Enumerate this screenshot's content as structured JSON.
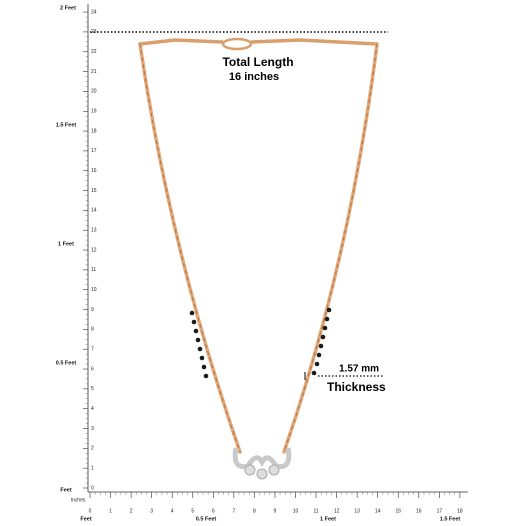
{
  "annotations": {
    "total_length": "Total  Length",
    "length_value": "16 inches",
    "thickness_value": "1.57 mm",
    "thickness": "Thickness"
  },
  "vertical_ruler": {
    "ticks": [
      0,
      1,
      2,
      3,
      4,
      5,
      6,
      7,
      8,
      9,
      10,
      11,
      12,
      13,
      14,
      15,
      16,
      17,
      18,
      19,
      20,
      21,
      22,
      23,
      24
    ],
    "feet_labels": [
      "2 Feet",
      "1.5 Feet",
      "1 Feet",
      "0.5 Feet",
      "Feet"
    ]
  },
  "horizontal_ruler": {
    "unit": "Inches",
    "ticks": [
      0,
      1,
      2,
      3,
      4,
      5,
      6,
      7,
      8,
      9,
      10,
      11,
      12,
      13,
      14,
      15,
      16,
      17,
      18
    ],
    "feet_labels": [
      "Feet",
      "0.5 Feet",
      "1 Feet",
      "1.5 Feet"
    ]
  }
}
